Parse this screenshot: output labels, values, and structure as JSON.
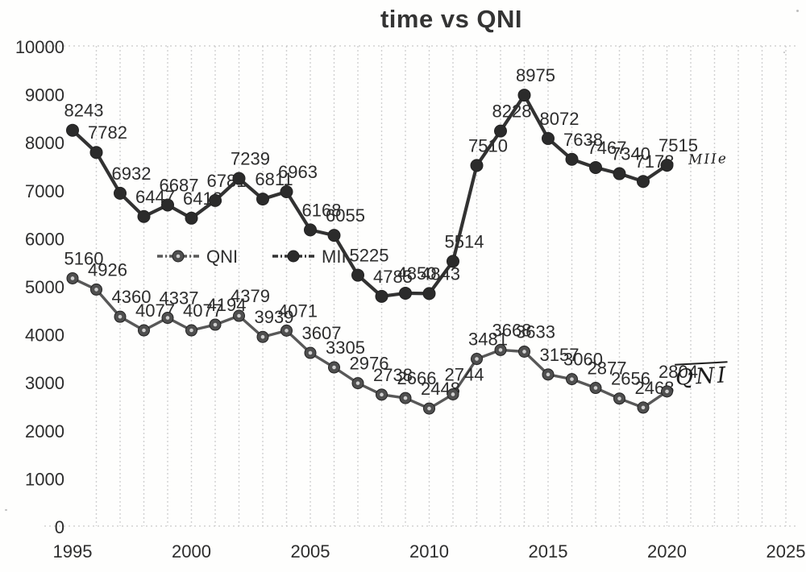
{
  "chart_data": {
    "type": "line",
    "title": "time vs QNI",
    "xlabel": "",
    "ylabel": "",
    "x": [
      1995,
      1996,
      1997,
      1998,
      1999,
      2000,
      2001,
      2002,
      2003,
      2004,
      2005,
      2006,
      2007,
      2008,
      2009,
      2010,
      2011,
      2012,
      2013,
      2014,
      2015,
      2016,
      2017,
      2018,
      2019,
      2020
    ],
    "series": [
      {
        "name": "QNI",
        "values": [
          5160,
          4926,
          4360,
          4077,
          4337,
          4077,
          4194,
          4379,
          3939,
          4071,
          3607,
          3305,
          2976,
          2738,
          2666,
          2448,
          2744,
          3481,
          3668,
          3633,
          3157,
          3060,
          2877,
          2656,
          2468,
          2804
        ],
        "color": "#585858",
        "marker_color": "#4f4f4f"
      },
      {
        "name": "MII",
        "values": [
          8243,
          7782,
          6932,
          6447,
          6687,
          6413,
          6781,
          7239,
          6811,
          6963,
          6168,
          6055,
          5225,
          4785,
          4850,
          4843,
          5514,
          7510,
          8228,
          8975,
          8072,
          7638,
          7467,
          7340,
          7178,
          7515
        ],
        "color": "#323232",
        "marker_color": "#2b2b2b"
      }
    ],
    "xlim": [
      1995,
      2025
    ],
    "ylim": [
      0,
      10000
    ],
    "x_ticks": [
      1995,
      2000,
      2005,
      2010,
      2015,
      2020,
      2025
    ],
    "y_ticks": [
      0,
      1000,
      2000,
      3000,
      4000,
      5000,
      6000,
      7000,
      8000,
      9000,
      10000
    ],
    "grid": "vertical dashed, one line per year",
    "legend_position": "inside plot, upper-middle-left",
    "legend": [
      "QNI",
      "MII"
    ],
    "data_labels": "value shown above every point",
    "annotations": [
      {
        "text": "MIIe",
        "style": "handwritten ink, right of MII line"
      },
      {
        "text": "QNI",
        "style": "handwritten ink with overbar, right of QNI line"
      }
    ],
    "colors": {
      "text": "#2d2d2d",
      "grid": "#c9c9c9",
      "axis_dots": "#bdbdbd",
      "background": "#fefefd"
    }
  }
}
